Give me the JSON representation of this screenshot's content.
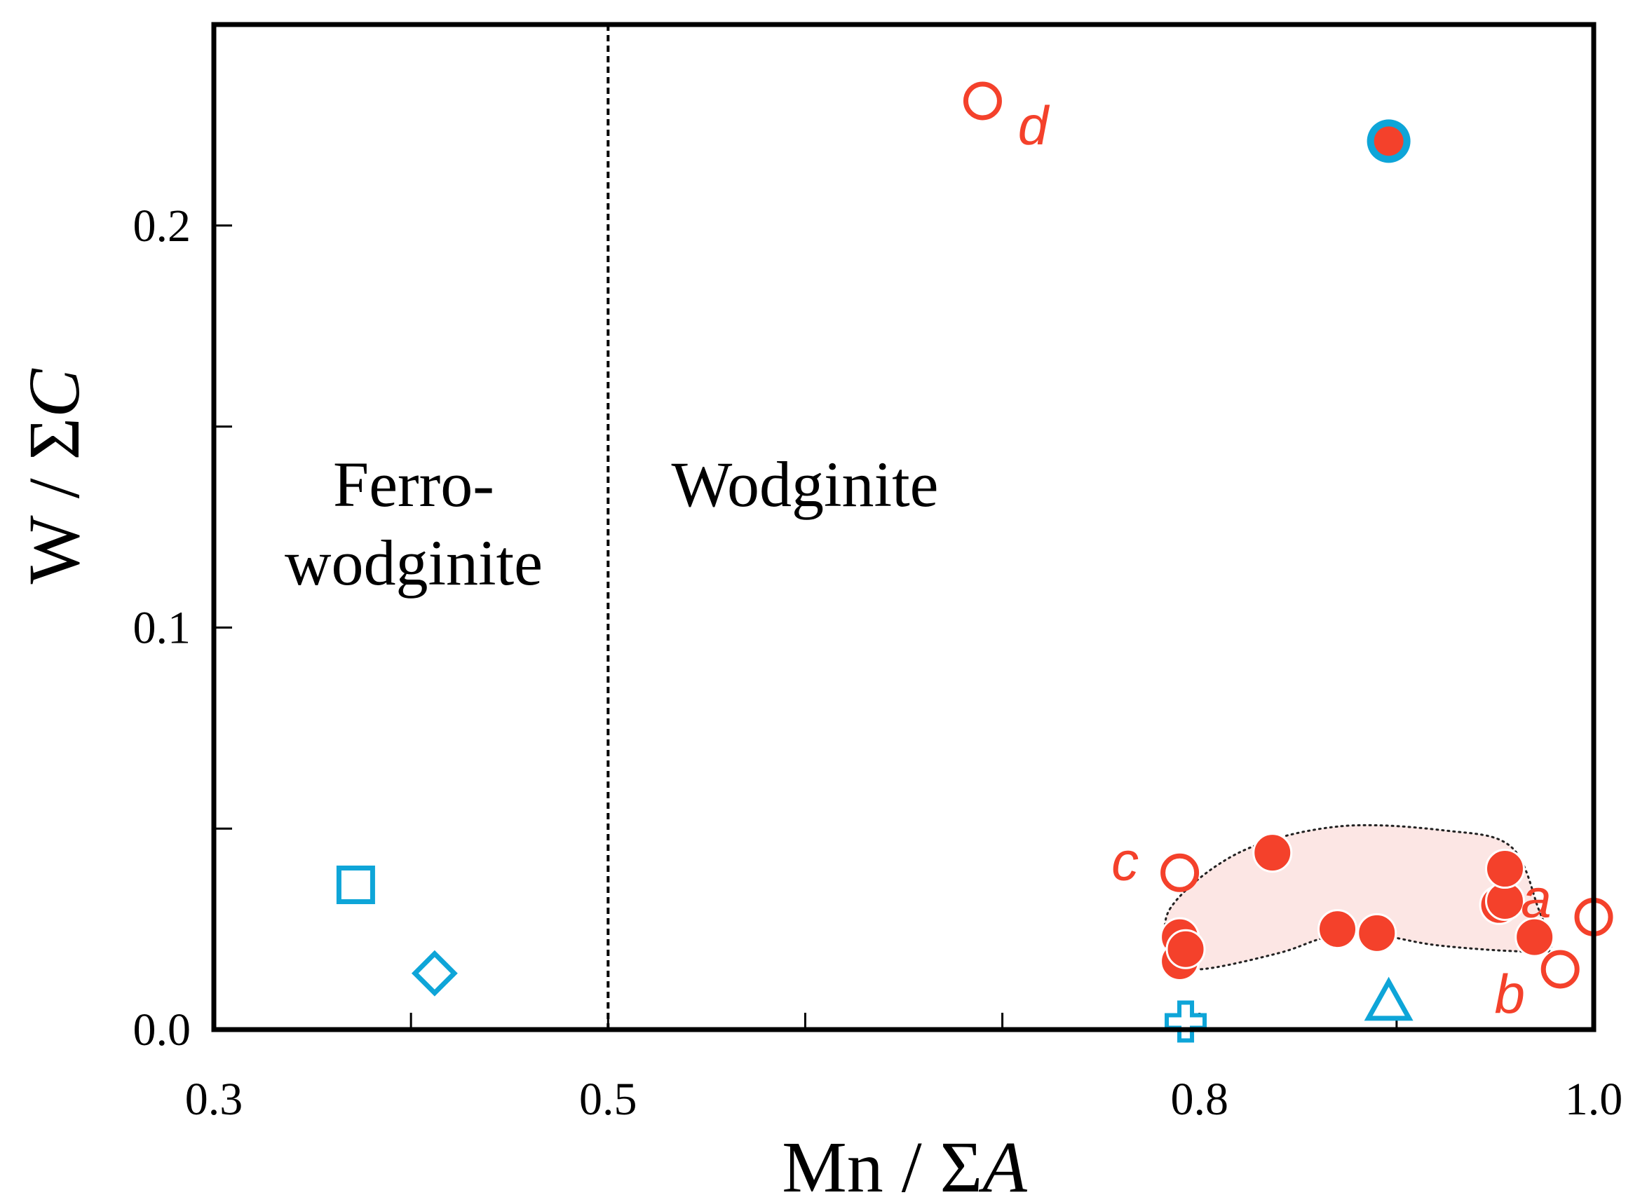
{
  "chart_data": {
    "type": "scatter",
    "title": "",
    "xlabel": {
      "main": "Mn / Σ",
      "italic": "A"
    },
    "ylabel": {
      "main": "W / Σ",
      "italic": "C"
    },
    "xlim": [
      0.3,
      1.0
    ],
    "ylim": [
      0.0,
      0.25
    ],
    "x_ticks": [
      0.3,
      0.4,
      0.5,
      0.6,
      0.7,
      0.8,
      0.9,
      1.0
    ],
    "x_tick_labels": [
      {
        "value": 0.3,
        "label": "0.3"
      },
      {
        "value": 0.5,
        "label": "0.5"
      },
      {
        "value": 0.8,
        "label": "0.8"
      },
      {
        "value": 1.0,
        "label": "1.0"
      }
    ],
    "y_ticks": [
      0.0,
      0.05,
      0.1,
      0.15,
      0.2
    ],
    "y_tick_labels": [
      {
        "value": 0.0,
        "label": "0.0"
      },
      {
        "value": 0.1,
        "label": "0.1"
      },
      {
        "value": 0.2,
        "label": "0.2"
      }
    ],
    "boundary": {
      "x": 0.5,
      "style": "dashed"
    },
    "regions": [
      {
        "lines": [
          "Ferro-",
          "wodginite"
        ],
        "x": 0.4,
        "y": 0.13
      },
      {
        "lines": [
          "Wodginite"
        ],
        "x": 0.6,
        "y": 0.13
      }
    ],
    "colors": {
      "red": "#f4412b",
      "blue": "#0ea5d8",
      "shade": "#fce6e4",
      "axis": "#000000"
    },
    "series": [
      {
        "name": "red-filled",
        "marker": "filled-circle",
        "color": "#f4412b",
        "points": [
          {
            "x": 0.79,
            "y": 0.023
          },
          {
            "x": 0.79,
            "y": 0.017
          },
          {
            "x": 0.793,
            "y": 0.02
          },
          {
            "x": 0.837,
            "y": 0.044
          },
          {
            "x": 0.87,
            "y": 0.025
          },
          {
            "x": 0.89,
            "y": 0.024
          },
          {
            "x": 0.952,
            "y": 0.031
          },
          {
            "x": 0.955,
            "y": 0.032
          },
          {
            "x": 0.955,
            "y": 0.04
          },
          {
            "x": 0.97,
            "y": 0.023
          }
        ]
      },
      {
        "name": "red-blue-ring",
        "marker": "ringed-circle",
        "color": "#f4412b",
        "ring": "#0ea5d8",
        "points": [
          {
            "x": 0.896,
            "y": 0.221
          }
        ]
      },
      {
        "name": "red-open",
        "marker": "open-circle",
        "color": "#f4412b",
        "points": [
          {
            "x": 0.69,
            "y": 0.231,
            "label": "d"
          },
          {
            "x": 0.79,
            "y": 0.039,
            "label": "c"
          },
          {
            "x": 1.0,
            "y": 0.028,
            "label": "a"
          },
          {
            "x": 0.983,
            "y": 0.015,
            "label": "b"
          }
        ]
      },
      {
        "name": "blue-square",
        "marker": "open-square",
        "color": "#0ea5d8",
        "points": [
          {
            "x": 0.372,
            "y": 0.036
          }
        ]
      },
      {
        "name": "blue-diamond",
        "marker": "open-diamond",
        "color": "#0ea5d8",
        "points": [
          {
            "x": 0.412,
            "y": 0.014
          }
        ]
      },
      {
        "name": "blue-cross",
        "marker": "open-cross",
        "color": "#0ea5d8",
        "points": [
          {
            "x": 0.793,
            "y": 0.002
          }
        ]
      },
      {
        "name": "blue-triangle",
        "marker": "open-triangle",
        "color": "#0ea5d8",
        "points": [
          {
            "x": 0.896,
            "y": 0.007
          }
        ]
      }
    ],
    "cluster_outline": [
      [
        0.785,
        0.03
      ],
      [
        0.82,
        0.044
      ],
      [
        0.87,
        0.0505
      ],
      [
        0.925,
        0.0495
      ],
      [
        0.958,
        0.0455
      ],
      [
        0.972,
        0.03
      ],
      [
        0.978,
        0.02
      ],
      [
        0.96,
        0.0195
      ],
      [
        0.92,
        0.021
      ],
      [
        0.89,
        0.0235
      ],
      [
        0.865,
        0.023
      ],
      [
        0.84,
        0.019
      ],
      [
        0.8,
        0.015
      ],
      [
        0.787,
        0.018
      ]
    ]
  }
}
